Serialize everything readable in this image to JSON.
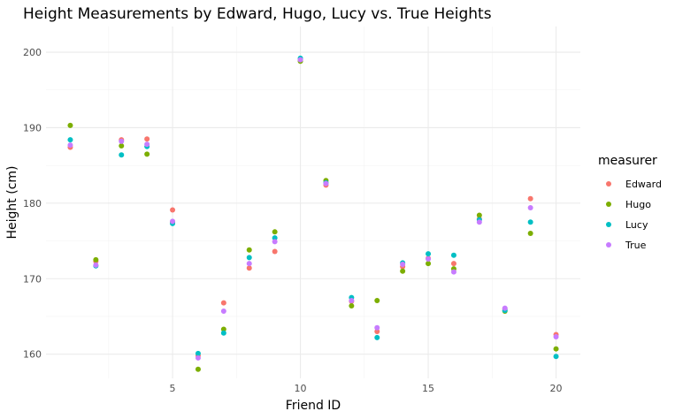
{
  "chart_data": {
    "type": "scatter",
    "title": "Height Measurements by Edward, Hugo, Lucy vs. True Heights",
    "xlabel": "Friend ID",
    "ylabel": "Height (cm)",
    "xlim": [
      0.05,
      20.95
    ],
    "ylim": [
      156.8,
      203.4
    ],
    "xticks": [
      5,
      10,
      15,
      20
    ],
    "yticks": [
      160,
      170,
      180,
      190,
      200
    ],
    "grid": true,
    "legend": {
      "title": "measurer",
      "placement": "right"
    },
    "series": [
      {
        "name": "Edward",
        "color": "#F8766D",
        "points": [
          [
            1,
            187.4
          ],
          [
            2,
            172.3
          ],
          [
            3,
            188.4
          ],
          [
            4,
            188.5
          ],
          [
            5,
            179.1
          ],
          [
            6,
            159.8
          ],
          [
            7,
            166.8
          ],
          [
            8,
            171.4
          ],
          [
            9,
            173.6
          ],
          [
            10,
            199.0
          ],
          [
            11,
            182.4
          ],
          [
            12,
            167.0
          ],
          [
            13,
            163.0
          ],
          [
            14,
            171.6
          ],
          [
            15,
            172.7
          ],
          [
            16,
            172.0
          ],
          [
            17,
            177.9
          ],
          [
            18,
            166.0
          ],
          [
            19,
            180.6
          ],
          [
            20,
            162.6
          ]
        ]
      },
      {
        "name": "Hugo",
        "color": "#7CAE00",
        "points": [
          [
            1,
            190.3
          ],
          [
            2,
            172.5
          ],
          [
            3,
            187.6
          ],
          [
            4,
            186.5
          ],
          [
            5,
            177.5
          ],
          [
            6,
            158.0
          ],
          [
            7,
            163.3
          ],
          [
            8,
            173.8
          ],
          [
            9,
            176.2
          ],
          [
            10,
            198.8
          ],
          [
            11,
            183.0
          ],
          [
            12,
            166.4
          ],
          [
            13,
            167.1
          ],
          [
            14,
            171.0
          ],
          [
            15,
            172.0
          ],
          [
            16,
            171.3
          ],
          [
            17,
            178.4
          ],
          [
            18,
            165.7
          ],
          [
            19,
            176.0
          ],
          [
            20,
            160.7
          ]
        ]
      },
      {
        "name": "Lucy",
        "color": "#00BFC4",
        "points": [
          [
            1,
            188.4
          ],
          [
            2,
            171.7
          ],
          [
            3,
            186.4
          ],
          [
            4,
            187.5
          ],
          [
            5,
            177.3
          ],
          [
            6,
            160.1
          ],
          [
            7,
            162.8
          ],
          [
            8,
            172.8
          ],
          [
            9,
            175.4
          ],
          [
            10,
            199.2
          ],
          [
            11,
            182.7
          ],
          [
            12,
            167.5
          ],
          [
            13,
            162.2
          ],
          [
            14,
            172.1
          ],
          [
            15,
            173.3
          ],
          [
            16,
            173.1
          ],
          [
            17,
            177.8
          ],
          [
            18,
            165.8
          ],
          [
            19,
            177.5
          ],
          [
            20,
            159.7
          ]
        ]
      },
      {
        "name": "True",
        "color": "#C77CFF",
        "points": [
          [
            1,
            187.7
          ],
          [
            2,
            171.8
          ],
          [
            3,
            188.2
          ],
          [
            4,
            187.8
          ],
          [
            5,
            177.6
          ],
          [
            6,
            159.5
          ],
          [
            7,
            165.7
          ],
          [
            8,
            172.0
          ],
          [
            9,
            174.9
          ],
          [
            10,
            199.0
          ],
          [
            11,
            182.6
          ],
          [
            12,
            167.1
          ],
          [
            13,
            163.5
          ],
          [
            14,
            171.9
          ],
          [
            15,
            172.6
          ],
          [
            16,
            170.9
          ],
          [
            17,
            177.5
          ],
          [
            18,
            166.1
          ],
          [
            19,
            179.4
          ],
          [
            20,
            162.3
          ]
        ]
      }
    ]
  }
}
